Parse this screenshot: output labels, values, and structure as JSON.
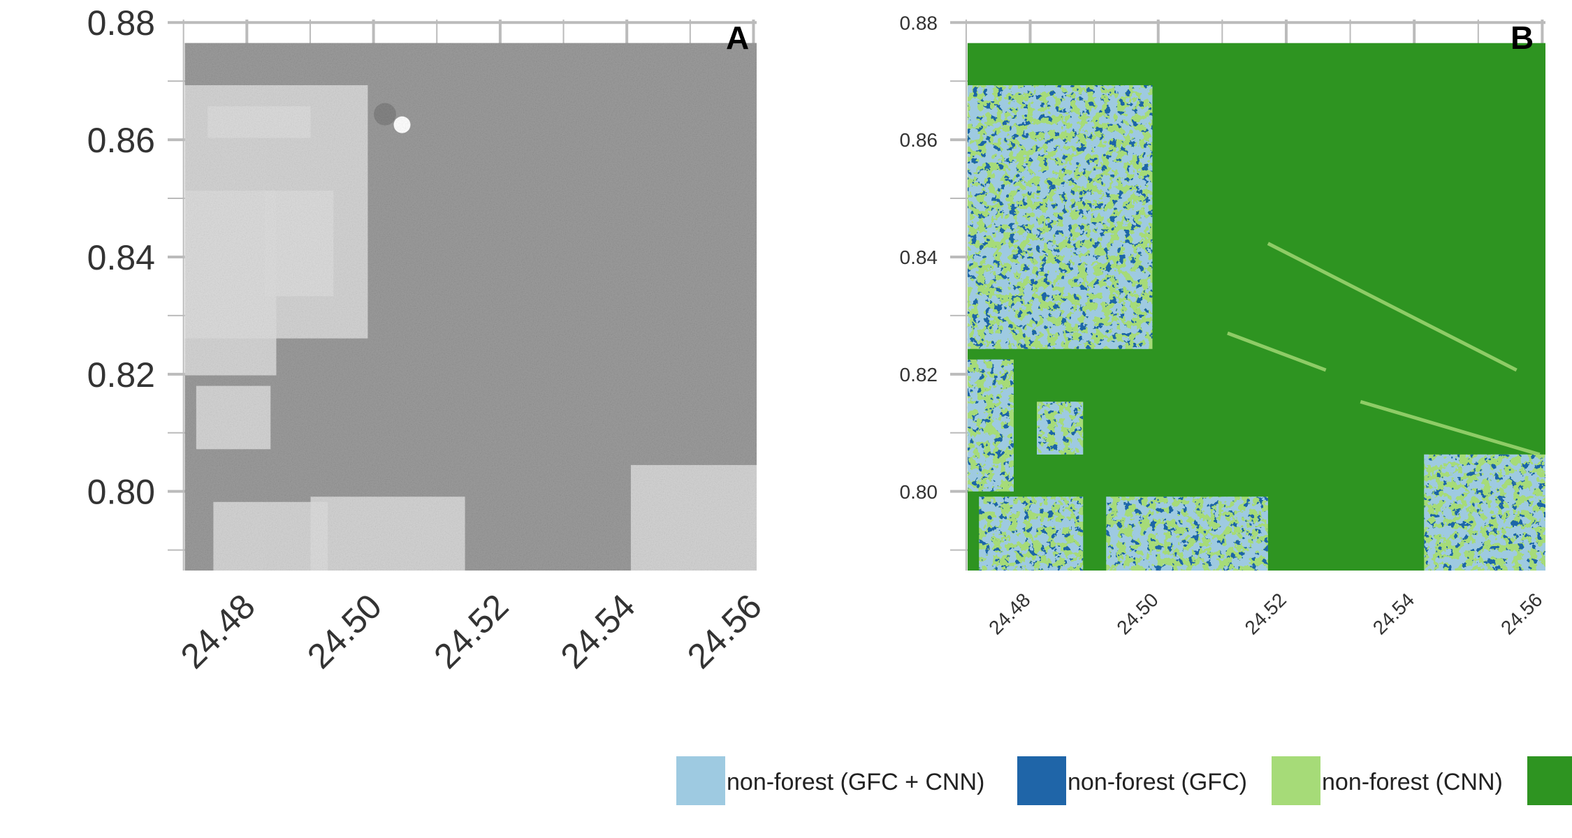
{
  "chart_data": [
    {
      "type": "heatmap",
      "panel_label": "A",
      "description_visible": "grayscale satellite/radar image",
      "xlim": [
        24.4675,
        24.5605
      ],
      "ylim": [
        0.7865,
        0.8805
      ],
      "image_extent": {
        "x": [
          24.4702,
          24.5605
        ],
        "y": [
          0.7865,
          0.8765
        ]
      },
      "x_ticks": [
        24.48,
        24.5,
        24.52,
        24.54,
        24.56
      ],
      "x_tick_labels": [
        "24.48",
        "24.50",
        "24.52",
        "24.54",
        "24.56"
      ],
      "y_ticks": [
        0.8,
        0.82,
        0.84,
        0.86,
        0.88
      ],
      "y_tick_labels": [
        "0.80",
        "0.82",
        "0.84",
        "0.86",
        "0.88"
      ],
      "grid": true,
      "colors": {
        "dark": "#3c3c3c",
        "light": "#bdbdbd"
      }
    },
    {
      "type": "heatmap",
      "panel_label": "B",
      "xlim": [
        24.4675,
        24.5605
      ],
      "ylim": [
        0.7865,
        0.8805
      ],
      "image_extent": {
        "x": [
          24.4702,
          24.5605
        ],
        "y": [
          0.7865,
          0.8765
        ]
      },
      "x_ticks": [
        24.48,
        24.5,
        24.52,
        24.54,
        24.56
      ],
      "x_tick_labels": [
        "24.48",
        "24.50",
        "24.52",
        "24.54",
        "24.56"
      ],
      "y_ticks": [
        0.8,
        0.82,
        0.84,
        0.86,
        0.88
      ],
      "y_tick_labels": [
        "0.80",
        "0.82",
        "0.84",
        "0.86",
        "0.88"
      ],
      "grid": true,
      "classes": [
        {
          "name": "non-forest (GFC + CNN)",
          "color": "#9ecae1"
        },
        {
          "name": "non-forest (GFC)",
          "color": "#1f65a8"
        },
        {
          "name": "non-forest (CNN)",
          "color": "#a6db78"
        },
        {
          "name": "",
          "color": "#2e9421"
        }
      ],
      "legend_position": "bottom"
    }
  ]
}
